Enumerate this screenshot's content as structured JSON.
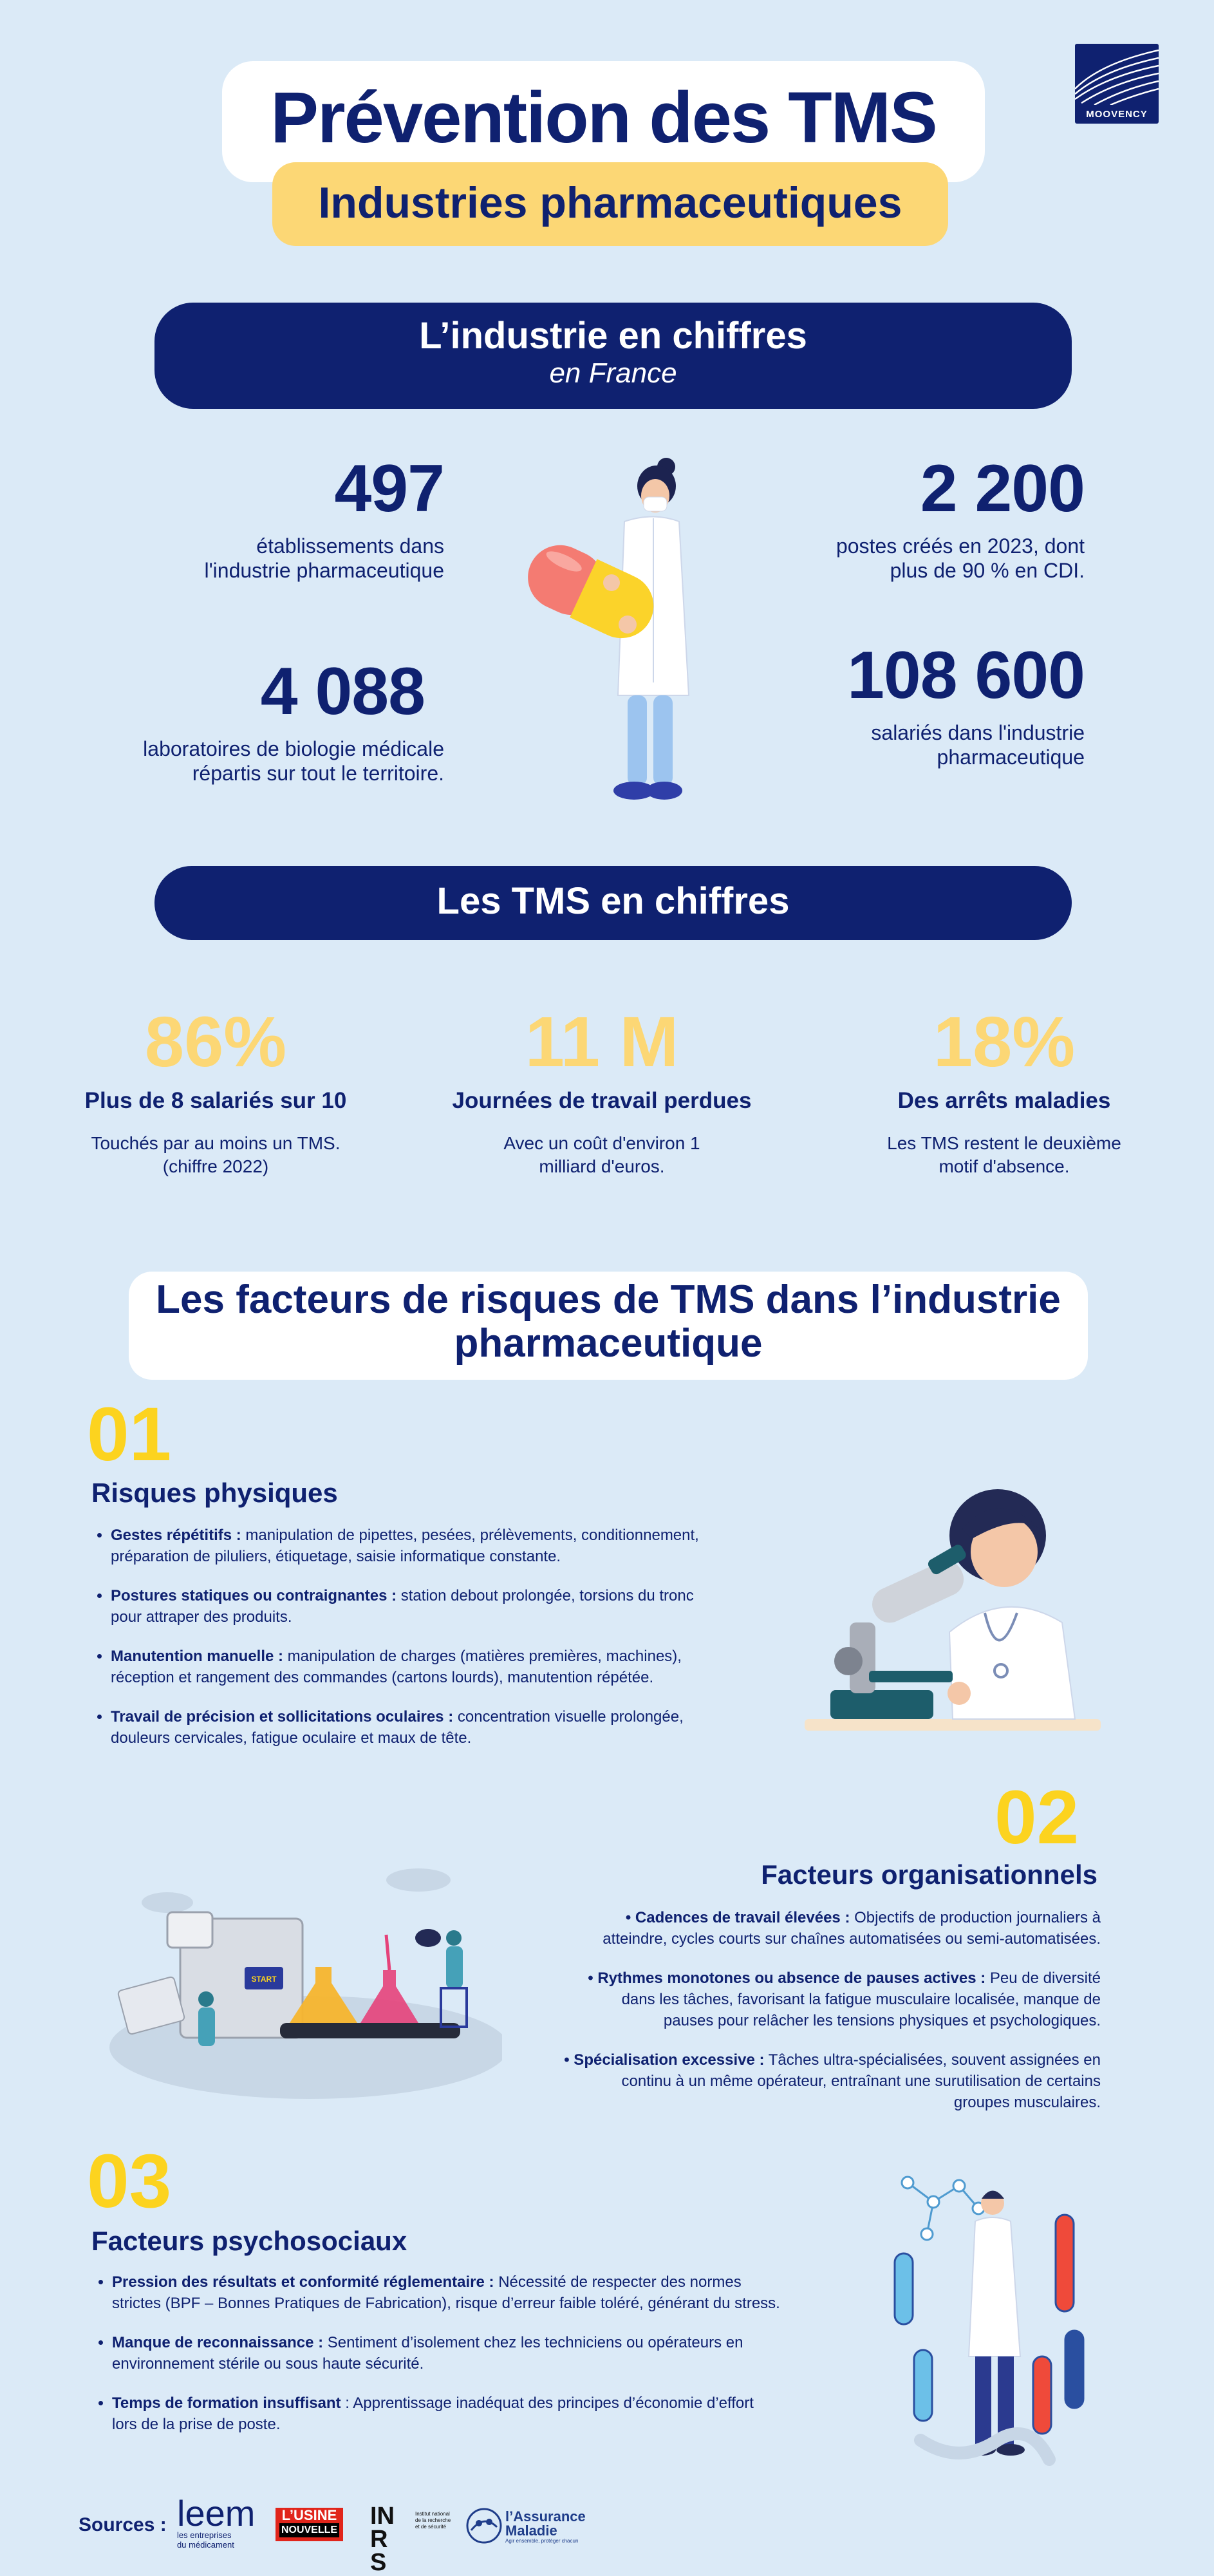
{
  "header": {
    "title": "Prévention des TMS",
    "subtitle": "Industries pharmaceutiques",
    "logo_text": "MOOVENCY"
  },
  "industry": {
    "banner_title": "L’industrie en chiffres",
    "banner_sub": "en France",
    "stats": [
      {
        "number": "497",
        "line1": "établissements dans",
        "line2": "l'industrie pharmaceutique"
      },
      {
        "number": "2 200",
        "line1": "postes créés en 2023, dont",
        "line2": "plus de 90 % en CDI."
      },
      {
        "number": "4 088",
        "line1": "laboratoires de biologie médicale",
        "line2": "répartis sur tout le territoire."
      },
      {
        "number": "108 600",
        "line1": "salariés dans l'industrie",
        "line2": "pharmaceutique"
      }
    ]
  },
  "tms": {
    "banner_title": "Les TMS en chiffres",
    "stats": [
      {
        "number": "86%",
        "title": "Plus de 8 salariés sur 10",
        "line1": "Touchés par au moins un TMS.",
        "line2": "(chiffre 2022)"
      },
      {
        "number": "11 M",
        "title": "Journées de travail perdues",
        "line1": "Avec un coût d'environ 1",
        "line2": "milliard d'euros."
      },
      {
        "number": "18%",
        "title": "Des arrêts maladies",
        "line1": "Les TMS restent le deuxième",
        "line2": "motif d'absence."
      }
    ]
  },
  "risks": {
    "title_line1": "Les facteurs de risques de TMS dans l’industrie",
    "title_line2": "pharmaceutique",
    "sections": [
      {
        "number": "01",
        "title": "Risques physiques",
        "items": [
          {
            "bold": "Gestes répétitifs :",
            "line1": " manipulation de pipettes, pesées, prélèvements, conditionnement,",
            "line2": "préparation de piluliers, étiquetage, saisie informatique constante."
          },
          {
            "bold": "Postures statiques ou contraignantes :",
            "line1": " station debout prolongée, torsions du tronc",
            "line2": "pour attraper des produits."
          },
          {
            "bold": "Manutention manuelle :",
            "line1": " manipulation de charges (matières premières, machines),",
            "line2": "réception et rangement des commandes (cartons lourds), manutention répétée."
          },
          {
            "bold": "Travail de précision et sollicitations oculaires :",
            "line1": " concentration visuelle prolongée,",
            "line2": "douleurs cervicales, fatigue oculaire et maux de tête."
          }
        ]
      },
      {
        "number": "02",
        "title": "Facteurs organisationnels",
        "items": [
          {
            "bold": "• Cadences de travail élevées :",
            "line1": " Objectifs de production journaliers à",
            "line2": "atteindre, cycles courts sur chaînes automatisées ou semi-automatisées.",
            "line3": ""
          },
          {
            "bold": "• Rythmes monotones ou absence de pauses actives :",
            "line1": " Peu de diversité",
            "line2": "dans les tâches, favorisant la fatigue musculaire localisée, manque de",
            "line3": "pauses pour relâcher les tensions physiques et psychologiques."
          },
          {
            "bold": "• Spécialisation excessive :",
            "line1": " Tâches ultra-spécialisées, souvent assignées en",
            "line2": "continu à un même opérateur, entraînant une surutilisation de certains",
            "line3": "groupes musculaires."
          }
        ]
      },
      {
        "number": "03",
        "title": "Facteurs psychosociaux",
        "items": [
          {
            "bold": "Pression des résultats et conformité réglementaire :",
            "line1": " Nécessité de respecter des normes",
            "line2": "strictes (BPF – Bonnes Pratiques de Fabrication), risque d’erreur faible toléré, générant du stress."
          },
          {
            "bold": "Manque de reconnaissance :",
            "line1": " Sentiment d’isolement chez les techniciens ou opérateurs en",
            "line2": "environnement stérile ou sous haute sécurité."
          },
          {
            "bold": "Temps de formation insuffisant",
            "line1": " : Apprentissage inadéquat des principes d’économie d’effort",
            "line2": "lors de la prise de poste."
          }
        ]
      }
    ]
  },
  "sources": {
    "label": "Sources :",
    "leem": "leem",
    "leem_sub1": "les entreprises",
    "leem_sub2": "du médicament",
    "usine1": "L’USINE",
    "usine2": "NOUVELLE",
    "inrs": "INRS",
    "inrs_sub1": "Institut national",
    "inrs_sub2": "de la recherche",
    "inrs_sub3": "et de sécurité",
    "assurance1": "l’Assurance",
    "assurance2": "Maladie",
    "assurance3": "Agir ensemble, protéger chacun"
  },
  "chart_data": null
}
